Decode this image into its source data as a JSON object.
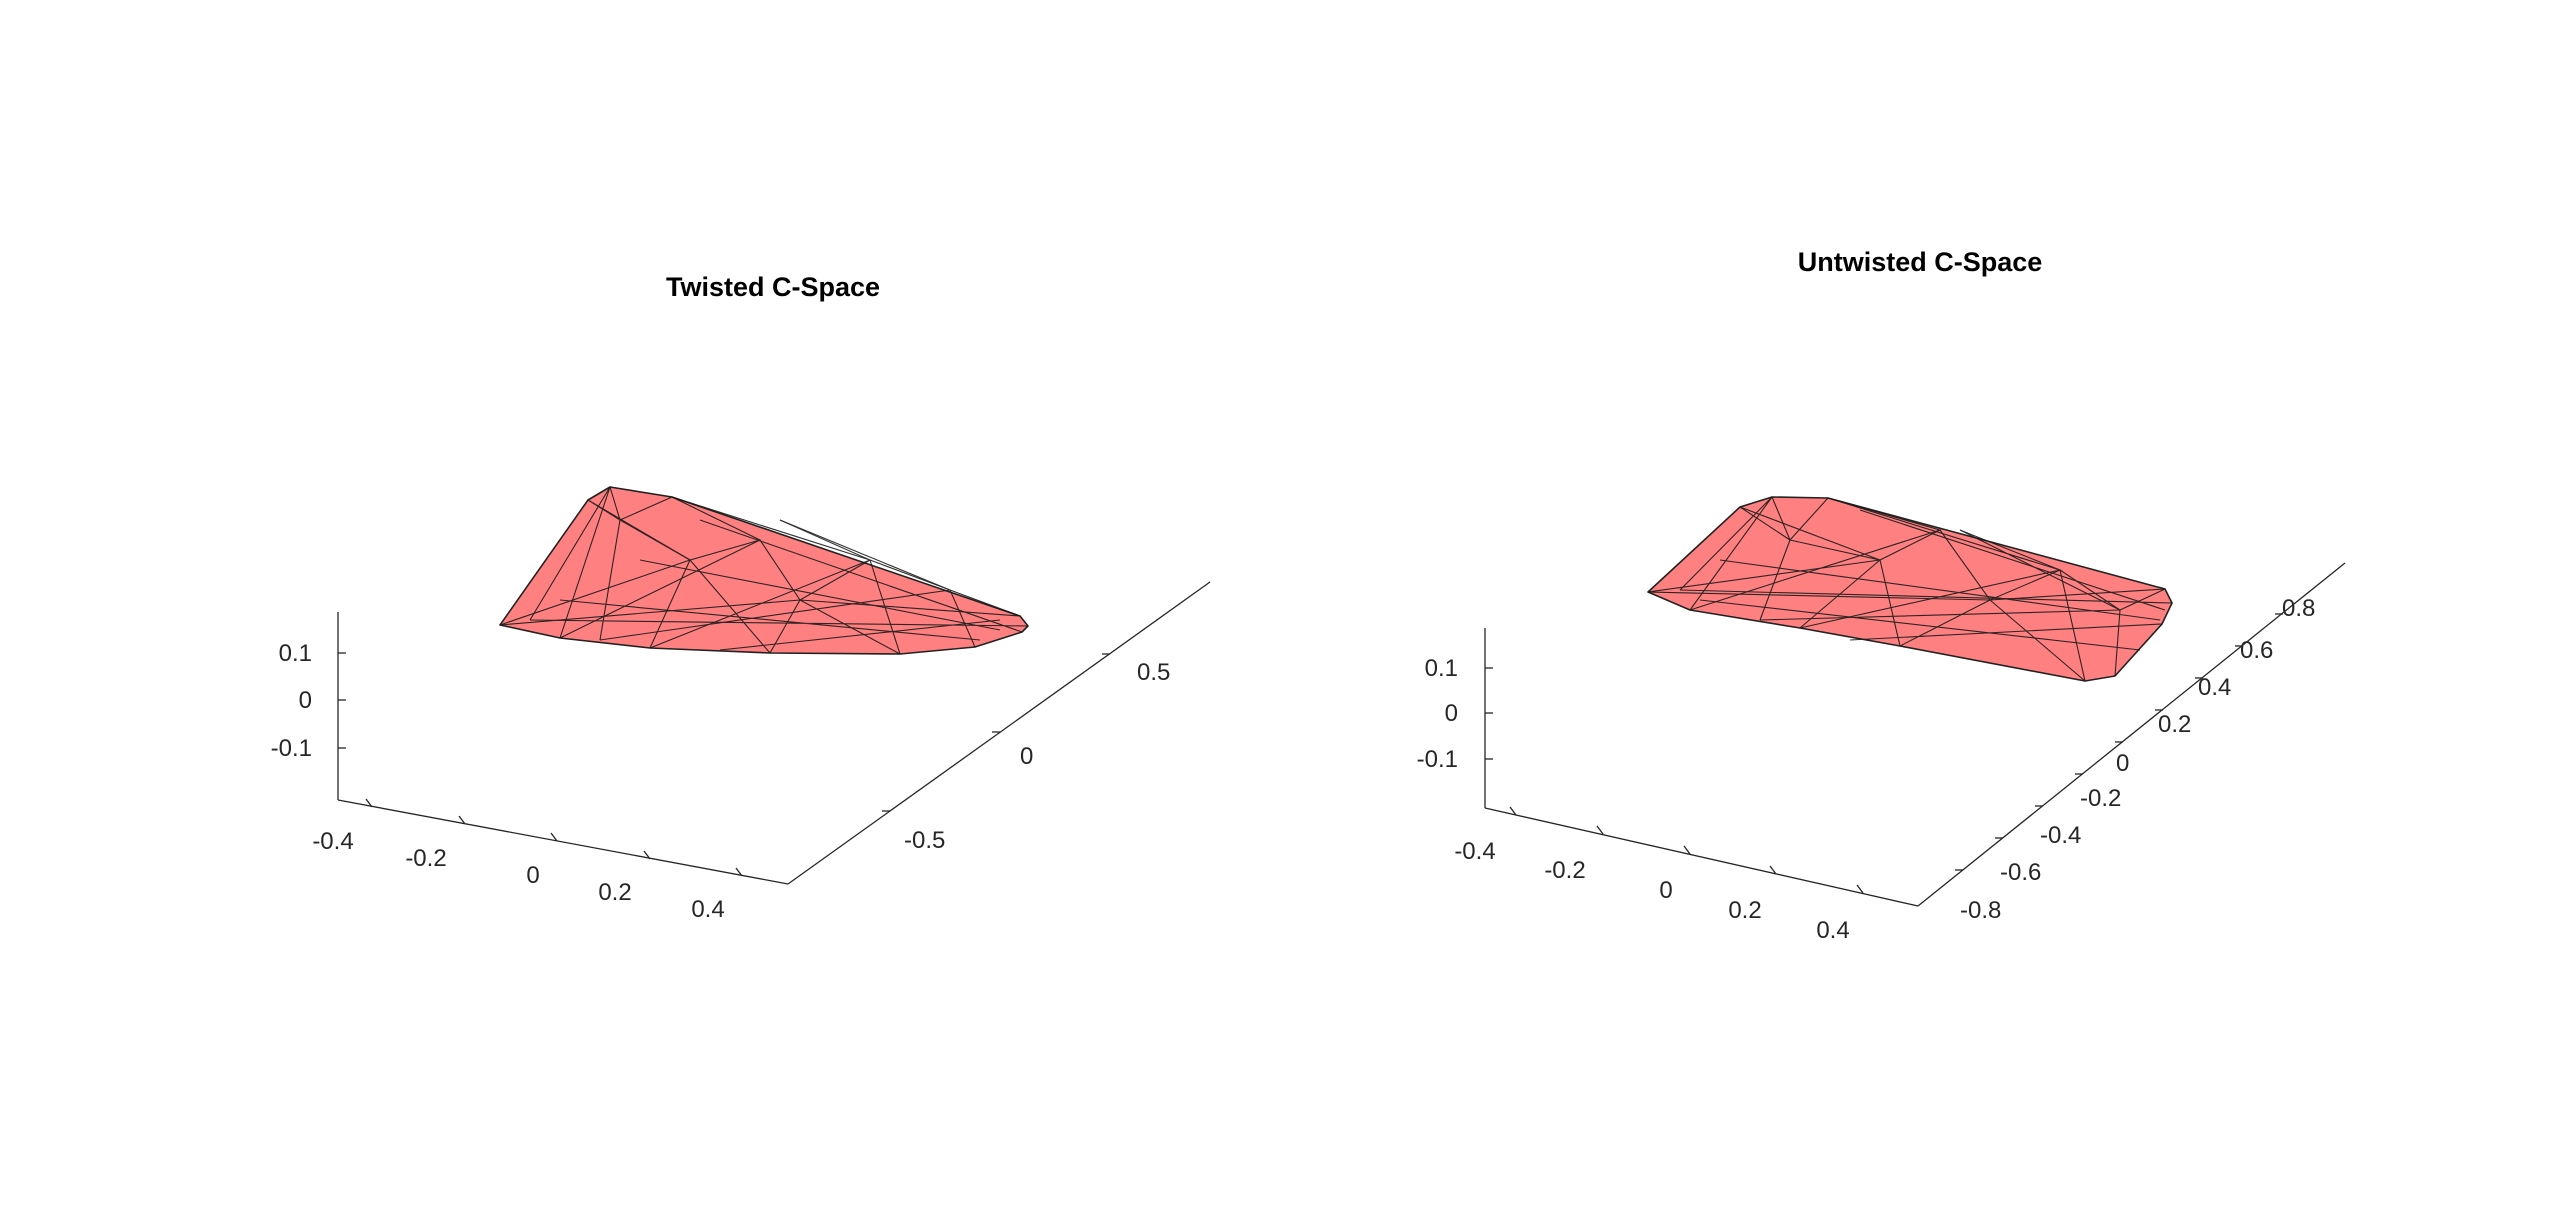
{
  "chart_data": [
    {
      "type": "surface3d",
      "title": "Twisted C-Space",
      "xlabel": "",
      "ylabel": "",
      "zlabel": "",
      "x_ticks": [
        "-0.4",
        "-0.2",
        "0",
        "0.2",
        "0.4"
      ],
      "y_ticks": [
        "-0.5",
        "0",
        "0.5"
      ],
      "z_ticks": [
        "-0.1",
        "0",
        "0.1"
      ],
      "xlim": [
        -0.5,
        0.5
      ],
      "ylim": [
        -0.8,
        0.8
      ],
      "zlim": [
        -0.2,
        0.2
      ],
      "surface_color": "#ff8080",
      "edge_color": "#000000",
      "grid": false
    },
    {
      "type": "surface3d",
      "title": "Untwisted C-Space",
      "xlabel": "",
      "ylabel": "",
      "zlabel": "",
      "x_ticks": [
        "-0.4",
        "-0.2",
        "0",
        "0.2",
        "0.4"
      ],
      "y_ticks": [
        "-0.8",
        "-0.6",
        "-0.4",
        "-0.2",
        "0",
        "0.2",
        "0.4",
        "0.6",
        "0.8"
      ],
      "z_ticks": [
        "-0.1",
        "0",
        "0.1"
      ],
      "xlim": [
        -0.5,
        0.5
      ],
      "ylim": [
        -0.9,
        0.9
      ],
      "zlim": [
        -0.2,
        0.2
      ],
      "surface_color": "#ff8080",
      "edge_color": "#000000",
      "grid": false
    }
  ]
}
